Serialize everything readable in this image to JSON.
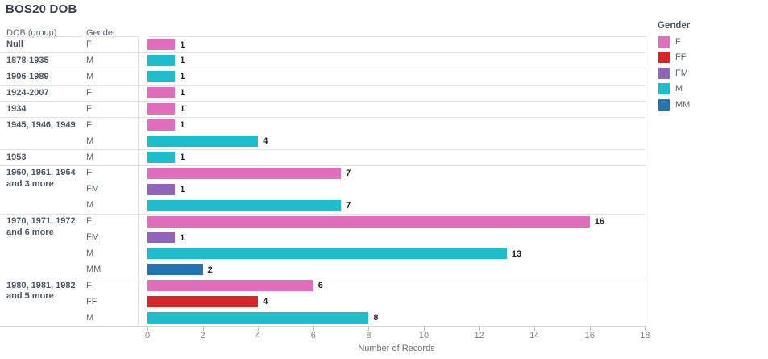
{
  "title": "BOS20 DOB",
  "columns": {
    "dob_header": "DOB (group)",
    "gender_header": "Gender"
  },
  "axis": {
    "title": "Number of Records"
  },
  "legend": {
    "title": "Gender",
    "items": [
      {
        "label": "F",
        "color": "#e06ebc"
      },
      {
        "label": "FF",
        "color": "#d62429"
      },
      {
        "label": "FM",
        "color": "#9164bb"
      },
      {
        "label": "M",
        "color": "#1ebdcc"
      },
      {
        "label": "MM",
        "color": "#2274b5"
      }
    ]
  },
  "chart_data": {
    "type": "bar",
    "orientation": "horizontal",
    "title": "BOS20 DOB",
    "xlabel": "Number of Records",
    "xlim": [
      0,
      18
    ],
    "x_ticks": [
      0,
      2,
      4,
      6,
      8,
      10,
      12,
      14,
      16,
      18
    ],
    "grid": "group-separators-only",
    "row_dimension": "DOB (group)",
    "color_dimension": "Gender",
    "legend_position": "right",
    "series_colors": {
      "F": "#e06ebc",
      "FF": "#d62429",
      "FM": "#9164bb",
      "M": "#1ebdcc",
      "MM": "#2274b5"
    },
    "groups": [
      {
        "dob": "Null",
        "rows": [
          {
            "gender": "F",
            "value": 1
          }
        ]
      },
      {
        "dob": "1878-1935",
        "rows": [
          {
            "gender": "M",
            "value": 1
          }
        ]
      },
      {
        "dob": "1906-1989",
        "rows": [
          {
            "gender": "M",
            "value": 1
          }
        ]
      },
      {
        "dob": "1924-2007",
        "rows": [
          {
            "gender": "F",
            "value": 1
          }
        ]
      },
      {
        "dob": "1934",
        "rows": [
          {
            "gender": "F",
            "value": 1
          }
        ]
      },
      {
        "dob": "1945, 1946, 1949",
        "rows": [
          {
            "gender": "F",
            "value": 1
          },
          {
            "gender": "M",
            "value": 4
          }
        ]
      },
      {
        "dob": "1953",
        "rows": [
          {
            "gender": "M",
            "value": 1
          }
        ]
      },
      {
        "dob": "1960, 1961, 1964 and 3 more",
        "rows": [
          {
            "gender": "F",
            "value": 7
          },
          {
            "gender": "FM",
            "value": 1
          },
          {
            "gender": "M",
            "value": 7
          }
        ]
      },
      {
        "dob": "1970, 1971, 1972 and 6 more",
        "rows": [
          {
            "gender": "F",
            "value": 16
          },
          {
            "gender": "FM",
            "value": 1
          },
          {
            "gender": "M",
            "value": 13
          },
          {
            "gender": "MM",
            "value": 2
          }
        ]
      },
      {
        "dob": "1980, 1981, 1982 and 5 more",
        "rows": [
          {
            "gender": "F",
            "value": 6
          },
          {
            "gender": "FF",
            "value": 4
          },
          {
            "gender": "M",
            "value": 8
          }
        ]
      }
    ]
  }
}
